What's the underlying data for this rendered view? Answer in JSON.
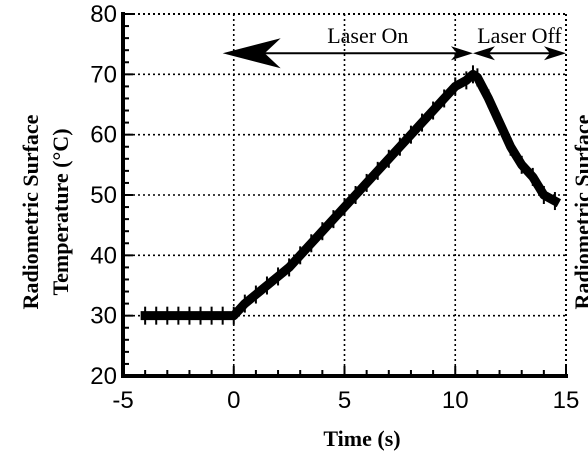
{
  "chart_data": {
    "type": "line",
    "title": "",
    "xlabel": "Time (s)",
    "ylabel_line1": "Radiometric Surface",
    "ylabel_line2": "Temperature (°C)",
    "right_label_partial": "Radiometric Surface",
    "xlim": [
      -5,
      15
    ],
    "ylim": [
      20,
      80
    ],
    "x_ticks": [
      -5,
      0,
      5,
      10,
      15
    ],
    "y_ticks": [
      20,
      30,
      40,
      50,
      60,
      70,
      80
    ],
    "x_tick_labels": [
      "-5",
      "0",
      "5",
      "10",
      "15"
    ],
    "y_tick_labels": [
      "20",
      "30",
      "40",
      "50",
      "60",
      "70",
      "80"
    ],
    "grid": "dotted",
    "series": [
      {
        "x": [
          -4.0,
          -3.5,
          -3.0,
          -2.5,
          -2.0,
          -1.5,
          -1.0,
          -0.5,
          0.0,
          0.5,
          1.0,
          1.5,
          2.0,
          2.5,
          3.0,
          3.5,
          4.0,
          4.5,
          5.0,
          5.5,
          6.0,
          6.5,
          7.0,
          7.5,
          8.0,
          8.5,
          9.0,
          9.5,
          10.0,
          10.5,
          10.8,
          11.0,
          11.5,
          12.0,
          12.5,
          13.0,
          13.5,
          14.0,
          14.5
        ],
        "y": [
          30,
          30,
          30,
          30,
          30,
          30,
          30,
          30,
          30,
          32,
          33.5,
          35,
          36.5,
          38,
          40,
          42,
          44,
          46,
          48,
          50,
          52,
          54,
          56,
          58,
          60,
          62,
          64,
          66,
          68,
          69,
          70,
          69.5,
          66,
          62,
          58,
          55,
          53,
          50,
          49
        ]
      }
    ],
    "annotations": [
      {
        "text": "Laser On",
        "x_from": -0.5,
        "x_to": 10.8,
        "y": 73.5
      },
      {
        "text": "Laser Off",
        "x_from": 10.8,
        "x_to": 15,
        "y": 73.5
      }
    ]
  }
}
